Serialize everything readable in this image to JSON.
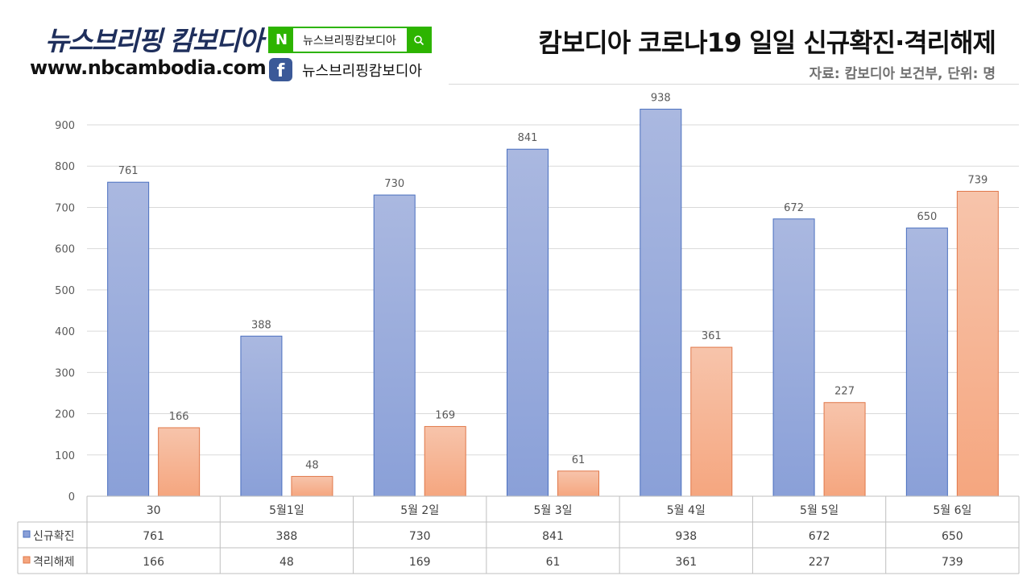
{
  "brand": {
    "name": "뉴스브리핑 캄보디아",
    "url": "www.nbcambodia.com",
    "naver_logo": "N",
    "naver_search_text": "뉴스브리핑캄보디아",
    "facebook_logo": "f",
    "facebook_text": "뉴스브리핑캄보디아"
  },
  "chart_data": {
    "type": "bar",
    "title": "캄보디아 코로나19 일일 신규확진·격리해제",
    "subtitle": "자료: 캄보디아 보건부, 단위: 명",
    "categories": [
      "30",
      "5월1일",
      "5월 2일",
      "5월 3일",
      "5월 4일",
      "5월 5일",
      "5월 6일"
    ],
    "series": [
      {
        "name": "신규확진",
        "values": [
          761,
          388,
          730,
          841,
          938,
          672,
          650
        ],
        "color": "#8ea4d9"
      },
      {
        "name": "격리해제",
        "values": [
          166,
          48,
          169,
          61,
          361,
          227,
          739
        ],
        "color": "#f6aa86"
      }
    ],
    "y_ticks": [
      "0",
      "100",
      "200",
      "300",
      "400",
      "500",
      "600",
      "700",
      "800",
      "900"
    ],
    "ylim": [
      0,
      900
    ],
    "grid": true,
    "legend": "data-table"
  }
}
